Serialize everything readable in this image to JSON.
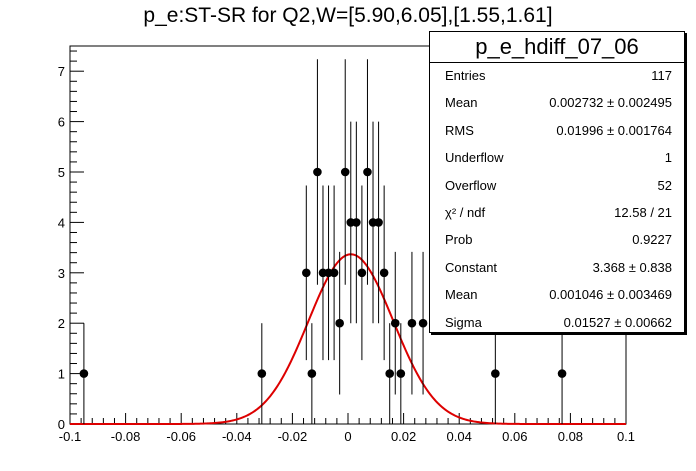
{
  "window": {
    "title": "p_e:ST-SR for Q2,W=[5.90,6.05],[1.55,1.61]"
  },
  "stats_box": {
    "title": "p_e_hdiff_07_06",
    "rows": [
      {
        "name": "Entries",
        "value": "117"
      },
      {
        "name": "Mean",
        "value": "0.002732 ± 0.002495"
      },
      {
        "name": "RMS",
        "value": "0.01996 ± 0.001764"
      },
      {
        "name": "Underflow",
        "value": "1"
      },
      {
        "name": "Overflow",
        "value": "52"
      },
      {
        "name": "χ² / ndf",
        "value": "12.58 / 21"
      },
      {
        "name": "Prob",
        "value": "0.9227"
      },
      {
        "name": "Constant",
        "value": "3.368 ± 0.838"
      },
      {
        "name": "Mean",
        "value": "0.001046 ± 0.003469"
      },
      {
        "name": "Sigma",
        "value": "0.01527 ± 0.00662"
      }
    ]
  },
  "chart_data": {
    "type": "scatter",
    "title": "p_e:ST-SR for Q2,W=[5.90,6.05],[1.55,1.61]",
    "xlabel": "",
    "ylabel": "",
    "xlim": [
      -0.1,
      0.1
    ],
    "ylim": [
      0,
      7.5
    ],
    "x_ticks": [
      "-0.1",
      "-0.08",
      "-0.06",
      "-0.04",
      "-0.02",
      "0",
      "0.02",
      "0.04",
      "0.06",
      "0.08",
      "0.1"
    ],
    "y_ticks": [
      "0",
      "1",
      "2",
      "3",
      "4",
      "5",
      "6",
      "7"
    ],
    "points": [
      {
        "x": -0.095,
        "y": 1
      },
      {
        "x": -0.031,
        "y": 1
      },
      {
        "x": -0.015,
        "y": 3
      },
      {
        "x": -0.013,
        "y": 1
      },
      {
        "x": -0.011,
        "y": 5
      },
      {
        "x": -0.009,
        "y": 3
      },
      {
        "x": -0.007,
        "y": 3
      },
      {
        "x": -0.005,
        "y": 3
      },
      {
        "x": -0.003,
        "y": 2
      },
      {
        "x": -0.001,
        "y": 5
      },
      {
        "x": 0.001,
        "y": 4
      },
      {
        "x": 0.003,
        "y": 4
      },
      {
        "x": 0.005,
        "y": 3
      },
      {
        "x": 0.007,
        "y": 5
      },
      {
        "x": 0.009,
        "y": 4
      },
      {
        "x": 0.011,
        "y": 4
      },
      {
        "x": 0.013,
        "y": 3
      },
      {
        "x": 0.015,
        "y": 1
      },
      {
        "x": 0.017,
        "y": 2
      },
      {
        "x": 0.019,
        "y": 1
      },
      {
        "x": 0.023,
        "y": 2
      },
      {
        "x": 0.027,
        "y": 2
      },
      {
        "x": 0.053,
        "y": 1
      },
      {
        "x": 0.077,
        "y": 1
      }
    ],
    "fit": {
      "function": "gaus",
      "constant": 3.368,
      "mean": 0.001046,
      "sigma": 0.01527,
      "color": "#dd0000"
    },
    "marker_color": "#000000",
    "grid": false
  }
}
